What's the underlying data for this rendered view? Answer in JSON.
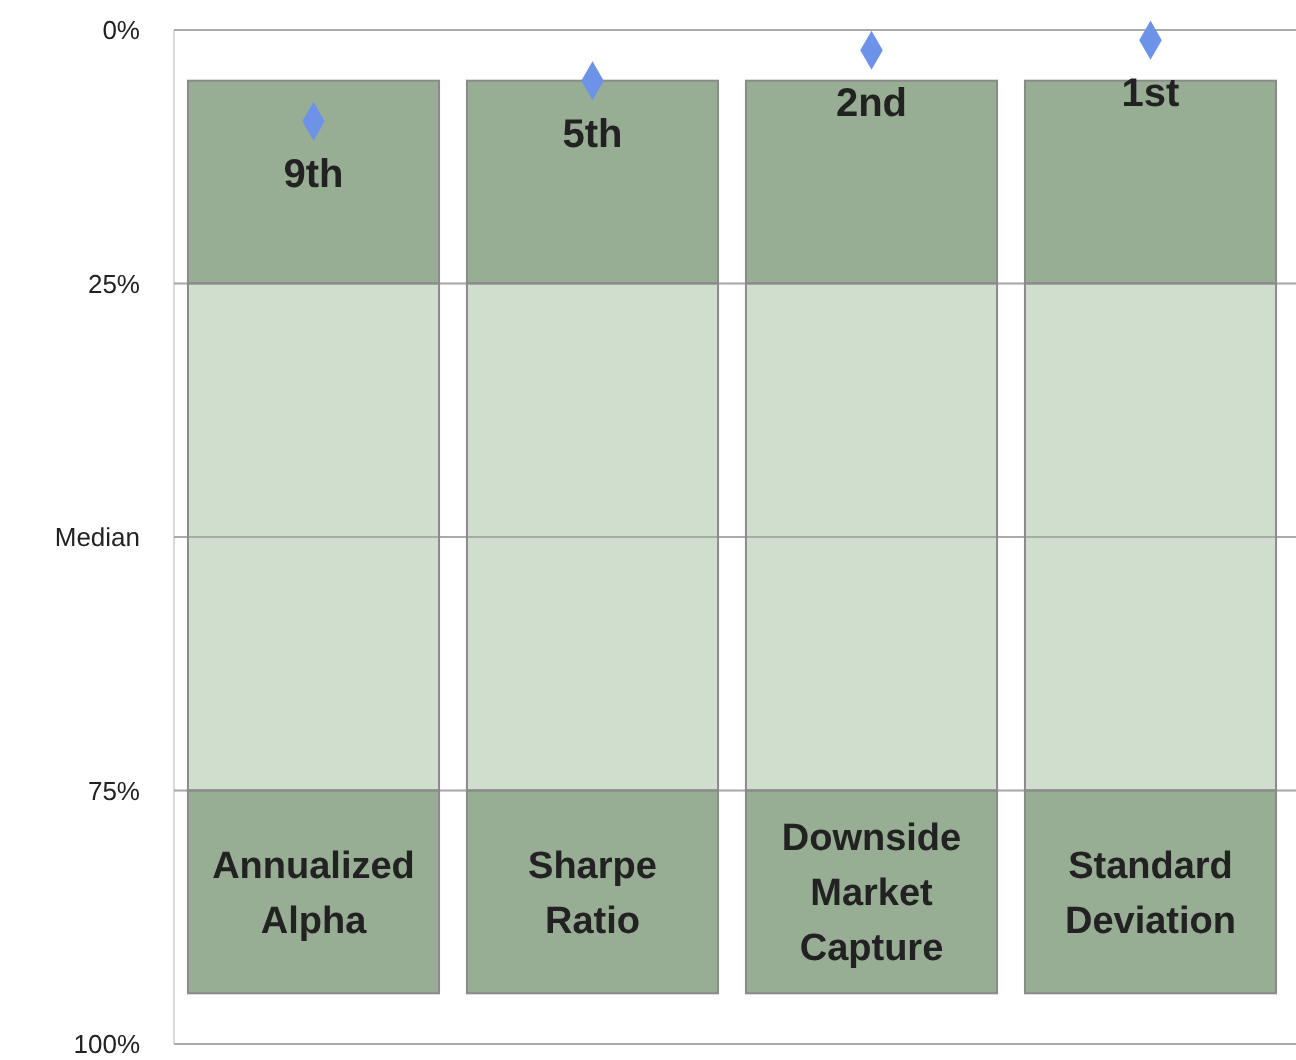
{
  "chart_data": {
    "type": "bar",
    "categories": [
      "Annualized Alpha",
      "Sharpe Ratio",
      "Downside Market Capture",
      "Standard Deviation"
    ],
    "series": [
      {
        "color": "#98ae94",
        "base": [
          5,
          5,
          5,
          5
        ],
        "values": [
          20,
          20,
          20,
          20
        ]
      },
      {
        "color": "#d0dece",
        "base": [
          25,
          25,
          25,
          25
        ],
        "values": [
          50,
          50,
          50,
          50
        ]
      },
      {
        "color": "#98ae94",
        "base": [
          75,
          75,
          75,
          75
        ],
        "values": [
          20,
          20,
          20,
          20
        ]
      },
      {
        "type": "scatter",
        "color": "#6d93e8",
        "x": [
          "Annualized Alpha",
          "Sharpe Ratio",
          "Downside Market Capture",
          "Standard Deviation"
        ],
        "values": [
          9,
          5,
          2,
          1
        ],
        "value_labels": [
          "9th",
          "5th",
          "2nd",
          "1st"
        ],
        "marker": "diamond"
      }
    ],
    "ylim": [
      100,
      0
    ],
    "yticks": [
      {
        "value": 0,
        "label": "0%"
      },
      {
        "value": 25,
        "label": "25%"
      },
      {
        "value": 50,
        "label": "Median"
      },
      {
        "value": 75,
        "label": "75%"
      },
      {
        "value": 100,
        "label": "100%"
      }
    ],
    "grid": "y"
  }
}
